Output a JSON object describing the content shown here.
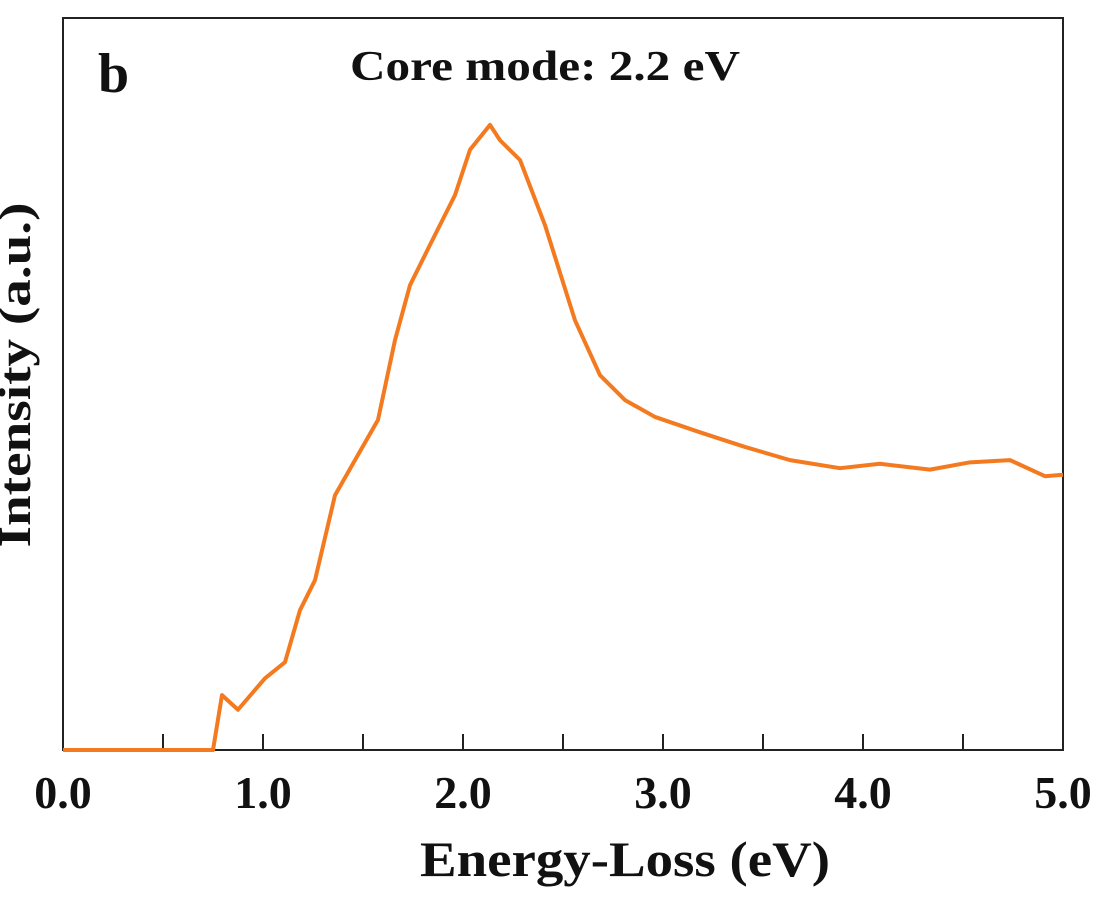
{
  "chart_data": {
    "type": "line",
    "title": "Core mode: 2.2 eV",
    "panel_label": "b",
    "xlabel": "Energy-Loss (eV)",
    "ylabel": "Intensity (a.u.)",
    "xlim": [
      0,
      5
    ],
    "ylim": [
      0,
      1
    ],
    "xticks": [
      {
        "value": 0,
        "label": "0.0"
      },
      {
        "value": 1,
        "label": "1.0"
      },
      {
        "value": 2,
        "label": "2.0"
      },
      {
        "value": 3,
        "label": "3.0"
      },
      {
        "value": 4,
        "label": "4.0"
      },
      {
        "value": 5,
        "label": "5.0"
      }
    ],
    "xminor_ticks": [
      0.5,
      1.5,
      2.5,
      3.5,
      4.5
    ],
    "series": [
      {
        "color": "#f47a20",
        "x": [
          0,
          0.75,
          0.795,
          0.875,
          1.01,
          1.11,
          1.185,
          1.26,
          1.36,
          1.46,
          1.575,
          1.66,
          1.735,
          1.835,
          1.96,
          2.035,
          2.135,
          2.185,
          2.285,
          2.41,
          2.56,
          2.685,
          2.81,
          2.96,
          3.185,
          3.41,
          3.635,
          3.885,
          4.085,
          4.335,
          4.535,
          4.735,
          4.91,
          5.0
        ],
        "values": [
          0,
          0,
          0.075,
          0.055,
          0.098,
          0.12,
          0.191,
          0.232,
          0.348,
          0.396,
          0.451,
          0.56,
          0.635,
          0.69,
          0.758,
          0.82,
          0.854,
          0.833,
          0.806,
          0.717,
          0.587,
          0.512,
          0.478,
          0.455,
          0.434,
          0.414,
          0.396,
          0.385,
          0.391,
          0.383,
          0.393,
          0.396,
          0.374,
          0.376
        ]
      }
    ]
  }
}
